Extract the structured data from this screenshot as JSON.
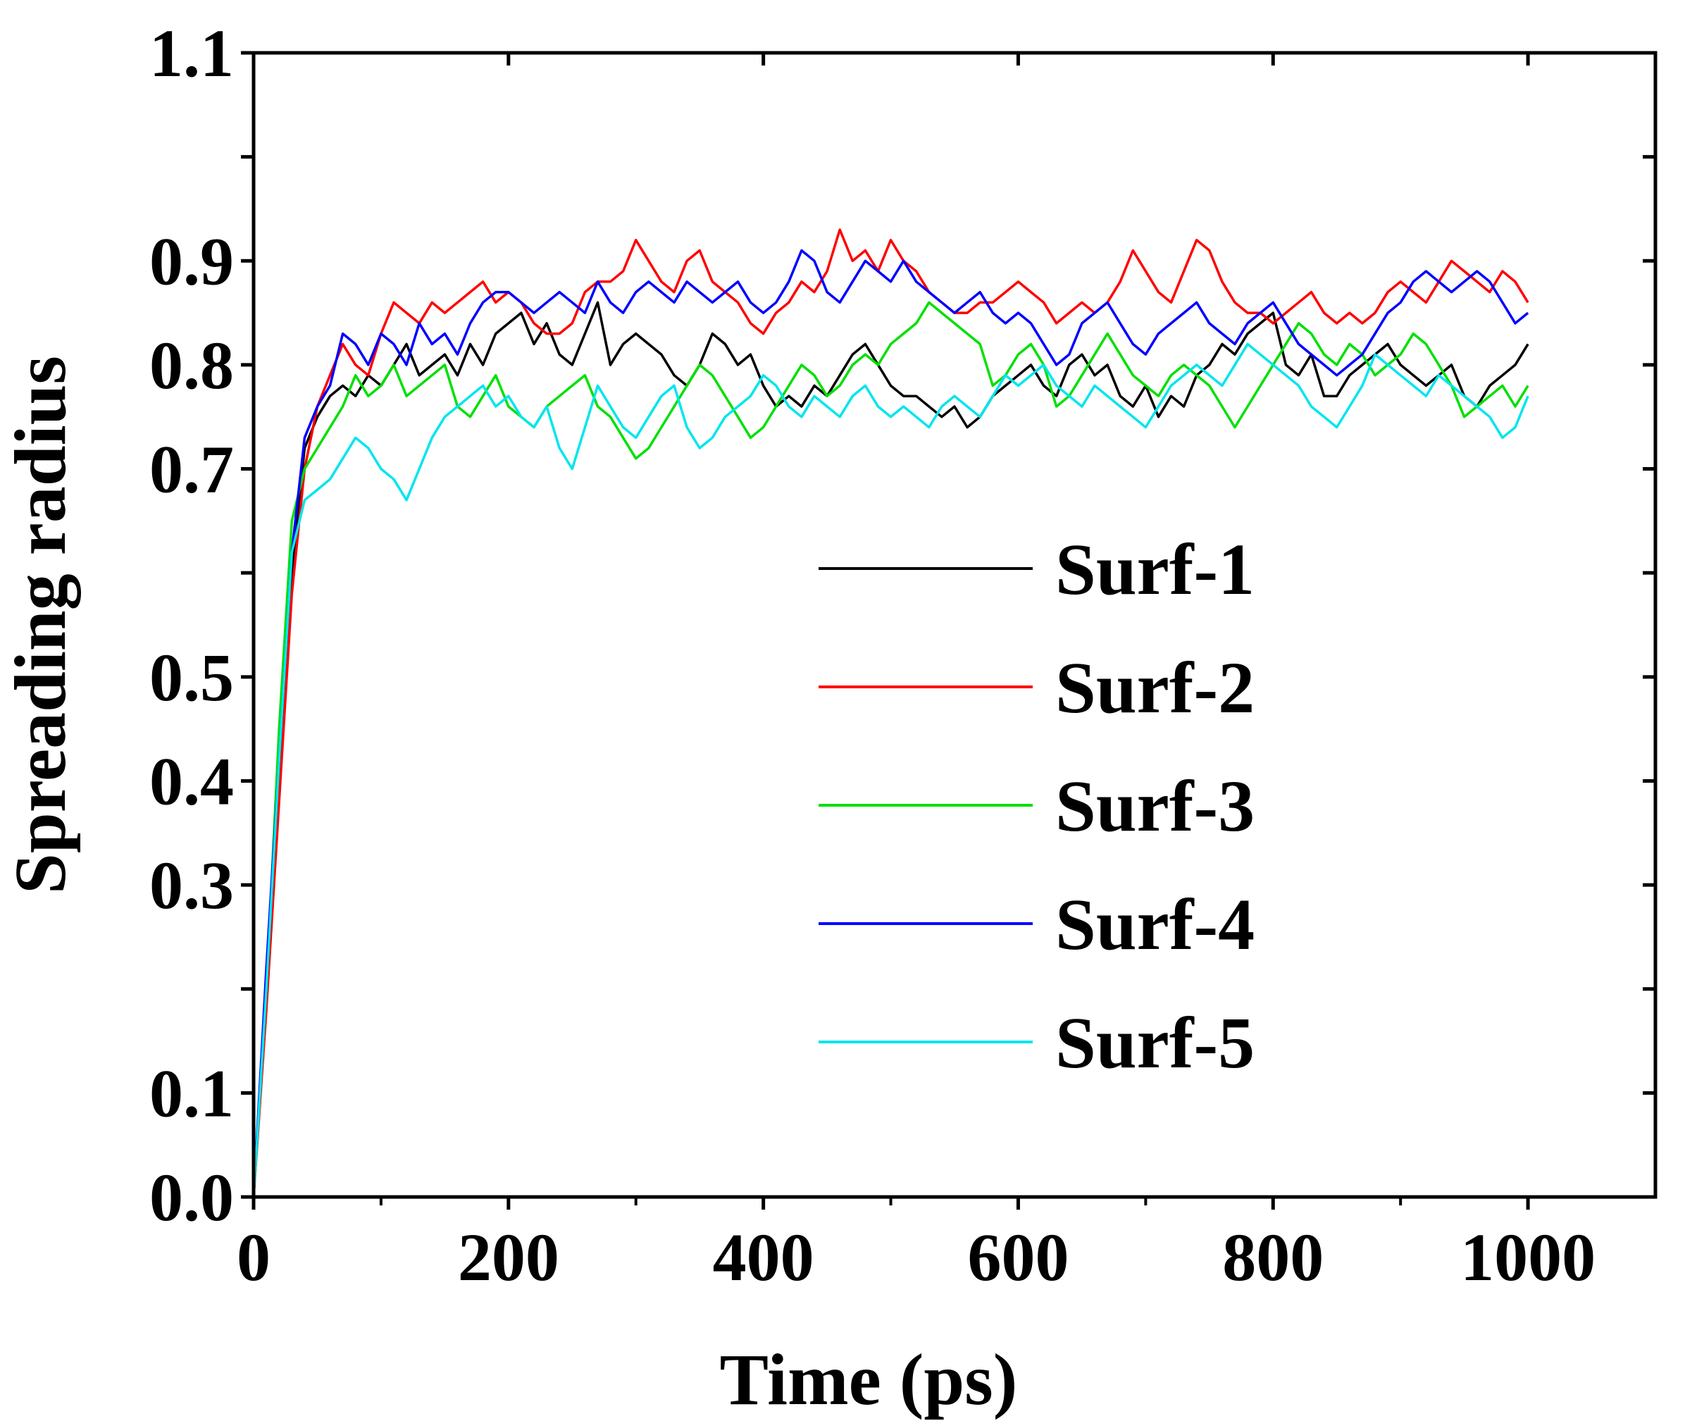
{
  "chart_data": {
    "type": "line",
    "title": "",
    "xlabel": "Time (ps)",
    "ylabel": "Spreading radius",
    "xlim": [
      0,
      1100
    ],
    "ylim": [
      0.0,
      1.1
    ],
    "xticks": [
      0,
      200,
      400,
      600,
      800,
      1000
    ],
    "xtick_labels": [
      "0",
      "200",
      "400",
      "600",
      "800",
      "1000"
    ],
    "yticks": [
      0.0,
      0.1,
      0.2,
      0.3,
      0.4,
      0.5,
      0.6,
      0.7,
      0.8,
      0.9,
      1.0,
      1.1
    ],
    "ytick_labels": [
      "0.0",
      "0.1",
      "",
      "0.3",
      "0.4",
      "0.5",
      "",
      "0.7",
      "0.8",
      "0.9",
      "",
      "1.1"
    ],
    "grid": false,
    "legend_position": "center-right",
    "series": [
      {
        "name": "Surf-1",
        "color": "#000000",
        "x": [
          0,
          10,
          20,
          30,
          40,
          50,
          60,
          70,
          80,
          90,
          100,
          110,
          120,
          130,
          140,
          150,
          160,
          170,
          180,
          190,
          200,
          210,
          220,
          230,
          240,
          250,
          260,
          270,
          280,
          290,
          300,
          310,
          320,
          330,
          340,
          350,
          360,
          370,
          380,
          390,
          400,
          410,
          420,
          430,
          440,
          450,
          460,
          470,
          480,
          490,
          500,
          510,
          520,
          530,
          540,
          550,
          560,
          570,
          580,
          590,
          600,
          610,
          620,
          630,
          640,
          650,
          660,
          670,
          680,
          690,
          700,
          710,
          720,
          730,
          740,
          750,
          760,
          770,
          780,
          790,
          800,
          810,
          820,
          830,
          840,
          850,
          860,
          870,
          880,
          890,
          900,
          910,
          920,
          930,
          940,
          950,
          960,
          970,
          980,
          990,
          1000
        ],
        "values": [
          0.0,
          0.2,
          0.4,
          0.6,
          0.72,
          0.75,
          0.77,
          0.78,
          0.77,
          0.79,
          0.78,
          0.8,
          0.82,
          0.79,
          0.8,
          0.81,
          0.79,
          0.82,
          0.8,
          0.83,
          0.84,
          0.85,
          0.82,
          0.84,
          0.81,
          0.8,
          0.83,
          0.86,
          0.8,
          0.82,
          0.83,
          0.82,
          0.81,
          0.79,
          0.78,
          0.8,
          0.83,
          0.82,
          0.8,
          0.81,
          0.78,
          0.76,
          0.77,
          0.76,
          0.78,
          0.77,
          0.79,
          0.81,
          0.82,
          0.8,
          0.78,
          0.77,
          0.77,
          0.76,
          0.75,
          0.76,
          0.74,
          0.75,
          0.77,
          0.78,
          0.79,
          0.8,
          0.78,
          0.77,
          0.8,
          0.81,
          0.79,
          0.8,
          0.77,
          0.76,
          0.78,
          0.75,
          0.77,
          0.76,
          0.79,
          0.8,
          0.82,
          0.81,
          0.83,
          0.84,
          0.85,
          0.8,
          0.79,
          0.81,
          0.77,
          0.77,
          0.79,
          0.8,
          0.81,
          0.82,
          0.8,
          0.79,
          0.78,
          0.79,
          0.8,
          0.77,
          0.76,
          0.78,
          0.79,
          0.8,
          0.82
        ]
      },
      {
        "name": "Surf-2",
        "color": "#ff0000",
        "x": [
          0,
          10,
          20,
          30,
          40,
          50,
          60,
          70,
          80,
          90,
          100,
          110,
          120,
          130,
          140,
          150,
          160,
          170,
          180,
          190,
          200,
          210,
          220,
          230,
          240,
          250,
          260,
          270,
          280,
          290,
          300,
          310,
          320,
          330,
          340,
          350,
          360,
          370,
          380,
          390,
          400,
          410,
          420,
          430,
          440,
          450,
          460,
          470,
          480,
          490,
          500,
          510,
          520,
          530,
          540,
          550,
          560,
          570,
          580,
          590,
          600,
          610,
          620,
          630,
          640,
          650,
          660,
          670,
          680,
          690,
          700,
          710,
          720,
          730,
          740,
          750,
          760,
          770,
          780,
          790,
          800,
          810,
          820,
          830,
          840,
          850,
          860,
          870,
          880,
          890,
          900,
          910,
          920,
          930,
          940,
          950,
          960,
          970,
          980,
          990,
          1000
        ],
        "values": [
          0.0,
          0.18,
          0.38,
          0.58,
          0.7,
          0.76,
          0.79,
          0.82,
          0.8,
          0.79,
          0.83,
          0.86,
          0.85,
          0.84,
          0.86,
          0.85,
          0.86,
          0.87,
          0.88,
          0.86,
          0.87,
          0.86,
          0.84,
          0.83,
          0.83,
          0.84,
          0.87,
          0.88,
          0.88,
          0.89,
          0.92,
          0.9,
          0.88,
          0.87,
          0.9,
          0.91,
          0.88,
          0.87,
          0.86,
          0.84,
          0.83,
          0.85,
          0.86,
          0.88,
          0.87,
          0.89,
          0.93,
          0.9,
          0.91,
          0.89,
          0.92,
          0.9,
          0.89,
          0.87,
          0.86,
          0.85,
          0.85,
          0.86,
          0.86,
          0.87,
          0.88,
          0.87,
          0.86,
          0.84,
          0.85,
          0.86,
          0.85,
          0.86,
          0.88,
          0.91,
          0.89,
          0.87,
          0.86,
          0.89,
          0.92,
          0.91,
          0.88,
          0.86,
          0.85,
          0.85,
          0.84,
          0.85,
          0.86,
          0.87,
          0.85,
          0.84,
          0.85,
          0.84,
          0.85,
          0.87,
          0.88,
          0.87,
          0.86,
          0.88,
          0.9,
          0.89,
          0.88,
          0.87,
          0.89,
          0.88,
          0.86
        ]
      },
      {
        "name": "Surf-3",
        "color": "#00e000",
        "x": [
          0,
          10,
          20,
          30,
          40,
          50,
          60,
          70,
          80,
          90,
          100,
          110,
          120,
          130,
          140,
          150,
          160,
          170,
          180,
          190,
          200,
          210,
          220,
          230,
          240,
          250,
          260,
          270,
          280,
          290,
          300,
          310,
          320,
          330,
          340,
          350,
          360,
          370,
          380,
          390,
          400,
          410,
          420,
          430,
          440,
          450,
          460,
          470,
          480,
          490,
          500,
          510,
          520,
          530,
          540,
          550,
          560,
          570,
          580,
          590,
          600,
          610,
          620,
          630,
          640,
          650,
          660,
          670,
          680,
          690,
          700,
          710,
          720,
          730,
          740,
          750,
          760,
          770,
          780,
          790,
          800,
          810,
          820,
          830,
          840,
          850,
          860,
          870,
          880,
          890,
          900,
          910,
          920,
          930,
          940,
          950,
          960,
          970,
          980,
          990,
          1000
        ],
        "values": [
          0.0,
          0.2,
          0.45,
          0.65,
          0.7,
          0.72,
          0.74,
          0.76,
          0.79,
          0.77,
          0.78,
          0.8,
          0.77,
          0.78,
          0.79,
          0.8,
          0.76,
          0.75,
          0.77,
          0.79,
          0.76,
          0.75,
          0.74,
          0.76,
          0.77,
          0.78,
          0.79,
          0.76,
          0.75,
          0.73,
          0.71,
          0.72,
          0.74,
          0.76,
          0.78,
          0.8,
          0.79,
          0.77,
          0.75,
          0.73,
          0.74,
          0.76,
          0.78,
          0.8,
          0.79,
          0.77,
          0.78,
          0.8,
          0.81,
          0.8,
          0.82,
          0.83,
          0.84,
          0.86,
          0.85,
          0.84,
          0.83,
          0.82,
          0.78,
          0.79,
          0.81,
          0.82,
          0.8,
          0.76,
          0.77,
          0.79,
          0.81,
          0.83,
          0.81,
          0.79,
          0.78,
          0.77,
          0.79,
          0.8,
          0.79,
          0.78,
          0.76,
          0.74,
          0.76,
          0.78,
          0.8,
          0.82,
          0.84,
          0.83,
          0.81,
          0.8,
          0.82,
          0.81,
          0.79,
          0.8,
          0.81,
          0.83,
          0.82,
          0.8,
          0.78,
          0.75,
          0.76,
          0.77,
          0.78,
          0.76,
          0.78
        ]
      },
      {
        "name": "Surf-4",
        "color": "#0000ff",
        "x": [
          0,
          10,
          20,
          30,
          40,
          50,
          60,
          70,
          80,
          90,
          100,
          110,
          120,
          130,
          140,
          150,
          160,
          170,
          180,
          190,
          200,
          210,
          220,
          230,
          240,
          250,
          260,
          270,
          280,
          290,
          300,
          310,
          320,
          330,
          340,
          350,
          360,
          370,
          380,
          390,
          400,
          410,
          420,
          430,
          440,
          450,
          460,
          470,
          480,
          490,
          500,
          510,
          520,
          530,
          540,
          550,
          560,
          570,
          580,
          590,
          600,
          610,
          620,
          630,
          640,
          650,
          660,
          670,
          680,
          690,
          700,
          710,
          720,
          730,
          740,
          750,
          760,
          770,
          780,
          790,
          800,
          810,
          820,
          830,
          840,
          850,
          860,
          870,
          880,
          890,
          900,
          910,
          920,
          930,
          940,
          950,
          960,
          970,
          980,
          990,
          1000
        ],
        "values": [
          0.0,
          0.22,
          0.42,
          0.62,
          0.73,
          0.76,
          0.78,
          0.83,
          0.82,
          0.8,
          0.83,
          0.82,
          0.8,
          0.84,
          0.82,
          0.83,
          0.81,
          0.84,
          0.86,
          0.87,
          0.87,
          0.86,
          0.85,
          0.86,
          0.87,
          0.86,
          0.85,
          0.88,
          0.86,
          0.85,
          0.87,
          0.88,
          0.87,
          0.86,
          0.88,
          0.87,
          0.86,
          0.87,
          0.88,
          0.86,
          0.85,
          0.86,
          0.88,
          0.91,
          0.9,
          0.87,
          0.86,
          0.88,
          0.9,
          0.89,
          0.88,
          0.9,
          0.88,
          0.87,
          0.86,
          0.85,
          0.86,
          0.87,
          0.85,
          0.84,
          0.85,
          0.84,
          0.82,
          0.8,
          0.81,
          0.84,
          0.85,
          0.86,
          0.84,
          0.82,
          0.81,
          0.83,
          0.84,
          0.85,
          0.86,
          0.84,
          0.83,
          0.82,
          0.84,
          0.85,
          0.86,
          0.84,
          0.82,
          0.81,
          0.8,
          0.79,
          0.8,
          0.81,
          0.83,
          0.85,
          0.86,
          0.88,
          0.89,
          0.88,
          0.87,
          0.88,
          0.89,
          0.88,
          0.86,
          0.84,
          0.85
        ]
      },
      {
        "name": "Surf-5",
        "color": "#00e5ee",
        "x": [
          0,
          10,
          20,
          30,
          40,
          50,
          60,
          70,
          80,
          90,
          100,
          110,
          120,
          130,
          140,
          150,
          160,
          170,
          180,
          190,
          200,
          210,
          220,
          230,
          240,
          250,
          260,
          270,
          280,
          290,
          300,
          310,
          320,
          330,
          340,
          350,
          360,
          370,
          380,
          390,
          400,
          410,
          420,
          430,
          440,
          450,
          460,
          470,
          480,
          490,
          500,
          510,
          520,
          530,
          540,
          550,
          560,
          570,
          580,
          590,
          600,
          610,
          620,
          630,
          640,
          650,
          660,
          670,
          680,
          690,
          700,
          710,
          720,
          730,
          740,
          750,
          760,
          770,
          780,
          790,
          800,
          810,
          820,
          830,
          840,
          850,
          860,
          870,
          880,
          890,
          900,
          910,
          920,
          930,
          940,
          950,
          960,
          970,
          980,
          990,
          1000
        ],
        "values": [
          0.0,
          0.2,
          0.42,
          0.62,
          0.67,
          0.68,
          0.69,
          0.71,
          0.73,
          0.72,
          0.7,
          0.69,
          0.67,
          0.7,
          0.73,
          0.75,
          0.76,
          0.77,
          0.78,
          0.76,
          0.77,
          0.75,
          0.74,
          0.76,
          0.72,
          0.7,
          0.74,
          0.78,
          0.76,
          0.74,
          0.73,
          0.75,
          0.77,
          0.78,
          0.74,
          0.72,
          0.73,
          0.75,
          0.76,
          0.77,
          0.79,
          0.78,
          0.76,
          0.75,
          0.77,
          0.76,
          0.75,
          0.77,
          0.78,
          0.76,
          0.75,
          0.76,
          0.75,
          0.74,
          0.76,
          0.77,
          0.76,
          0.75,
          0.77,
          0.79,
          0.78,
          0.79,
          0.8,
          0.78,
          0.77,
          0.76,
          0.78,
          0.77,
          0.76,
          0.75,
          0.74,
          0.76,
          0.78,
          0.79,
          0.8,
          0.79,
          0.78,
          0.8,
          0.82,
          0.81,
          0.8,
          0.79,
          0.78,
          0.76,
          0.75,
          0.74,
          0.76,
          0.78,
          0.81,
          0.8,
          0.79,
          0.78,
          0.77,
          0.79,
          0.78,
          0.77,
          0.76,
          0.75,
          0.73,
          0.74,
          0.77
        ]
      }
    ]
  }
}
